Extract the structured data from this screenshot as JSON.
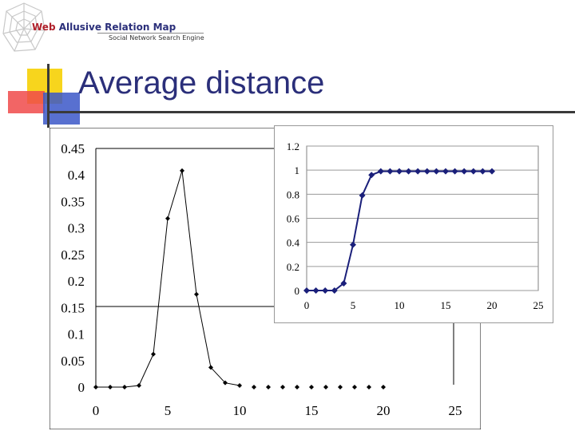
{
  "logo": {
    "title_first": "Web",
    "title_rest": " Allusive Relation Map",
    "subtitle": "Social Network Search Engine"
  },
  "slide": {
    "title": "Average distance"
  },
  "chart_data": [
    {
      "type": "line",
      "title": "",
      "xlabel": "",
      "ylabel": "",
      "xlim": [
        0,
        25
      ],
      "ylim": [
        0,
        0.45
      ],
      "x_ticks": [
        "0",
        "5",
        "10",
        "15",
        "20",
        "25"
      ],
      "y_ticks": [
        "0",
        "0.05",
        "0.1",
        "0.15",
        "0.2",
        "0.25",
        "0.3",
        "0.35",
        "0.4",
        "0.45"
      ],
      "grid": false,
      "color": "#000000",
      "series": [
        {
          "x": [
            0,
            1,
            2,
            3,
            4,
            5,
            6,
            7,
            8,
            9,
            10,
            11,
            12,
            13,
            14,
            15,
            16,
            17,
            18,
            19,
            20
          ],
          "y": [
            0,
            0,
            0,
            0.003,
            0.062,
            0.318,
            0.408,
            0.175,
            0.037,
            0.008,
            0.003,
            0,
            0,
            0,
            0,
            0,
            0,
            0,
            0,
            0,
            0
          ]
        }
      ]
    },
    {
      "type": "line",
      "title": "",
      "xlabel": "",
      "ylabel": "",
      "xlim": [
        0,
        25
      ],
      "ylim": [
        0,
        1.2
      ],
      "x_ticks": [
        "0",
        "5",
        "10",
        "15",
        "20",
        "25"
      ],
      "y_ticks": [
        "0",
        "0.2",
        "0.4",
        "0.6",
        "0.8",
        "1",
        "1.2"
      ],
      "grid": true,
      "color": "#1a1f7a",
      "series": [
        {
          "x": [
            0,
            1,
            2,
            3,
            4,
            5,
            6,
            7,
            8,
            9,
            10,
            11,
            12,
            13,
            14,
            15,
            16,
            17,
            18,
            19,
            20
          ],
          "y": [
            0,
            0,
            0,
            0,
            0.06,
            0.38,
            0.79,
            0.96,
            0.99,
            0.99,
            0.99,
            0.99,
            0.99,
            0.99,
            0.99,
            0.99,
            0.99,
            0.99,
            0.99,
            0.99,
            0.99
          ]
        }
      ]
    }
  ]
}
